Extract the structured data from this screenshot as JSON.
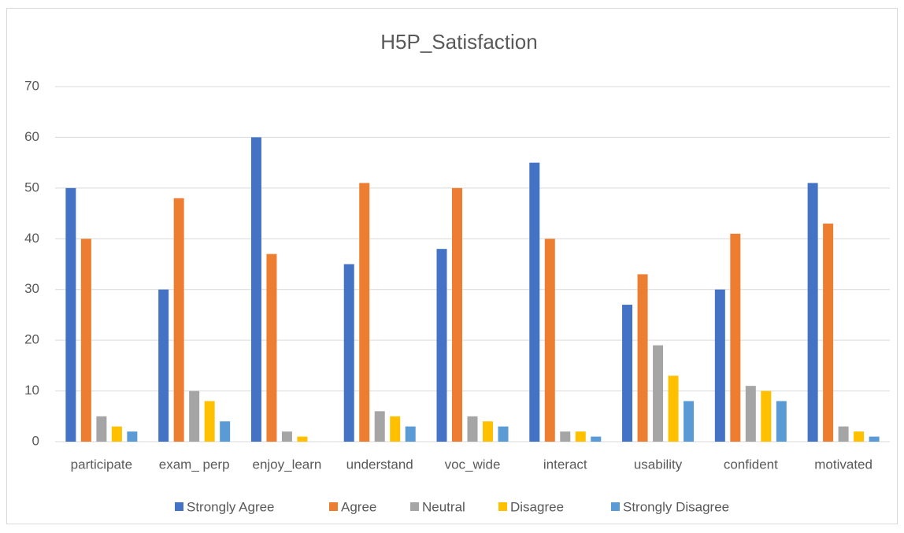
{
  "chart_data": {
    "type": "bar",
    "title": "H5P_Satisfaction",
    "categories": [
      "participate",
      "exam_ perp",
      "enjoy_learn",
      "understand",
      "voc_wide",
      "interact",
      "usability",
      "confident",
      "motivated"
    ],
    "series": [
      {
        "name": "Strongly Agree",
        "color": "#4472c4",
        "values": [
          50,
          30,
          60,
          35,
          38,
          55,
          27,
          30,
          51
        ]
      },
      {
        "name": "Agree",
        "color": "#ed7d31",
        "values": [
          40,
          48,
          37,
          51,
          50,
          40,
          33,
          41,
          43
        ]
      },
      {
        "name": "Neutral",
        "color": "#a5a5a5",
        "values": [
          5,
          10,
          2,
          6,
          5,
          2,
          19,
          11,
          3
        ]
      },
      {
        "name": "Disagree",
        "color": "#ffc000",
        "values": [
          3,
          8,
          1,
          5,
          4,
          2,
          13,
          10,
          2
        ]
      },
      {
        "name": "Strongly Disagree",
        "color": "#5b9bd5",
        "values": [
          2,
          4,
          0,
          3,
          3,
          1,
          8,
          8,
          1
        ]
      }
    ],
    "ylim": [
      0,
      70
    ],
    "yticks": [
      0,
      10,
      20,
      30,
      40,
      50,
      60,
      70
    ],
    "grid": true,
    "legend": "bottom"
  }
}
